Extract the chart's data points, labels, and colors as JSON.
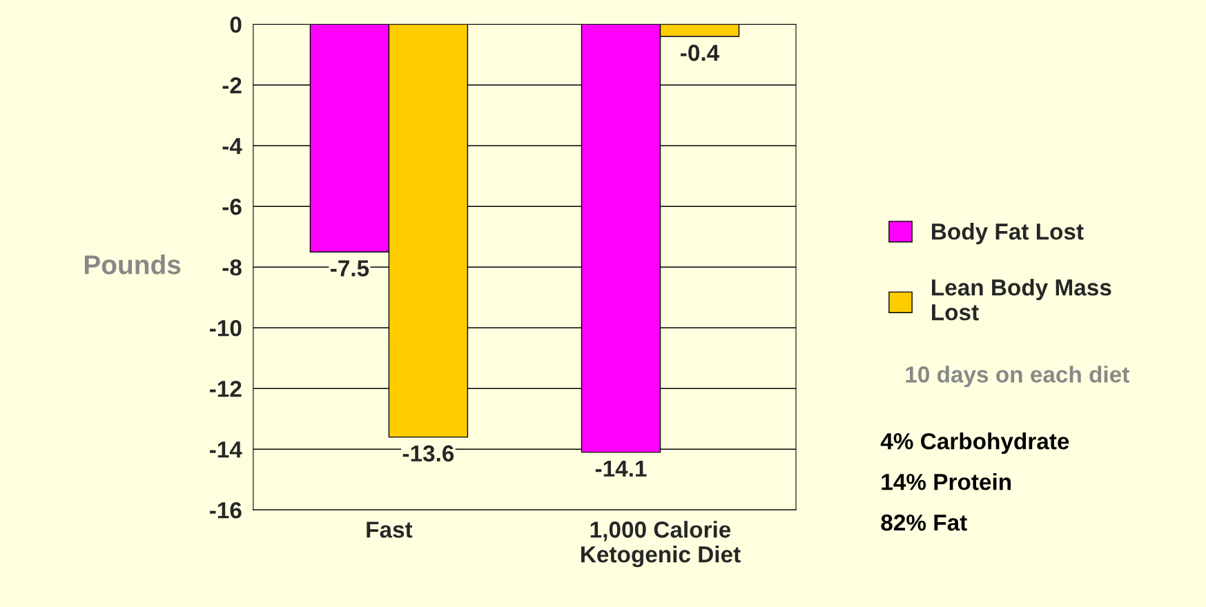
{
  "chart_data": {
    "type": "bar",
    "ylabel": "Pounds",
    "categories": [
      "Fast",
      "1,000 Calorie\nKetogenic Diet"
    ],
    "series": [
      {
        "name": "Body Fat Lost",
        "color": "#ff00ff",
        "values": [
          -7.5,
          -14.1
        ]
      },
      {
        "name": "Lean Body Mass Lost",
        "color": "#ffcc00",
        "values": [
          -13.6,
          -0.4
        ]
      }
    ],
    "ylim": [
      -16,
      0
    ],
    "yticks": [
      -16,
      -14,
      -12,
      -10,
      -8,
      -6,
      -4,
      -2,
      0
    ],
    "grid": "y",
    "legend": "right",
    "data_labels": true,
    "annotations": [
      "10 days on each diet",
      "4% Carbohydrate",
      "14% Protein",
      "82% Fat"
    ]
  }
}
